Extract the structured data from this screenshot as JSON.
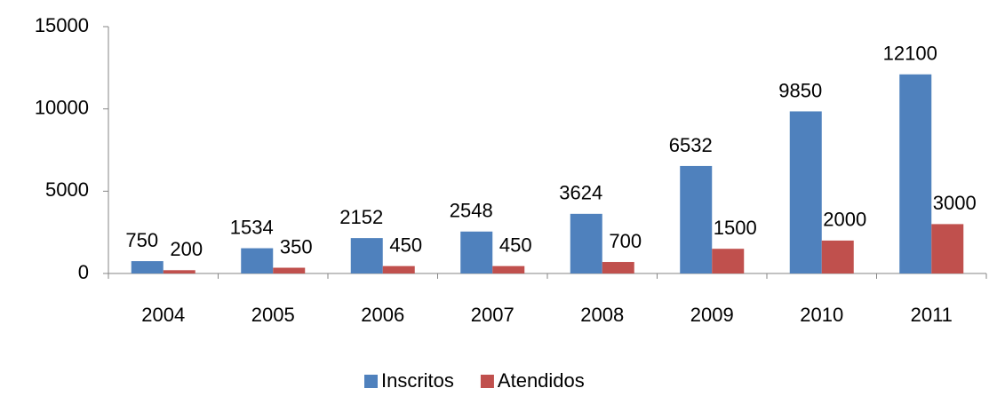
{
  "chart_data": {
    "type": "bar",
    "categories": [
      "2004",
      "2005",
      "2006",
      "2007",
      "2008",
      "2009",
      "2010",
      "2011"
    ],
    "series": [
      {
        "name": "Inscritos",
        "color": "#4f81bd",
        "values": [
          750,
          1534,
          2152,
          2548,
          3624,
          6532,
          9850,
          12100
        ]
      },
      {
        "name": "Atendidos",
        "color": "#c0504d",
        "values": [
          200,
          350,
          450,
          450,
          700,
          1500,
          2000,
          3000
        ]
      }
    ],
    "ylim": [
      0,
      15000
    ],
    "yticks": [
      0,
      5000,
      10000,
      15000
    ],
    "grid": false,
    "legend": "bottom"
  }
}
